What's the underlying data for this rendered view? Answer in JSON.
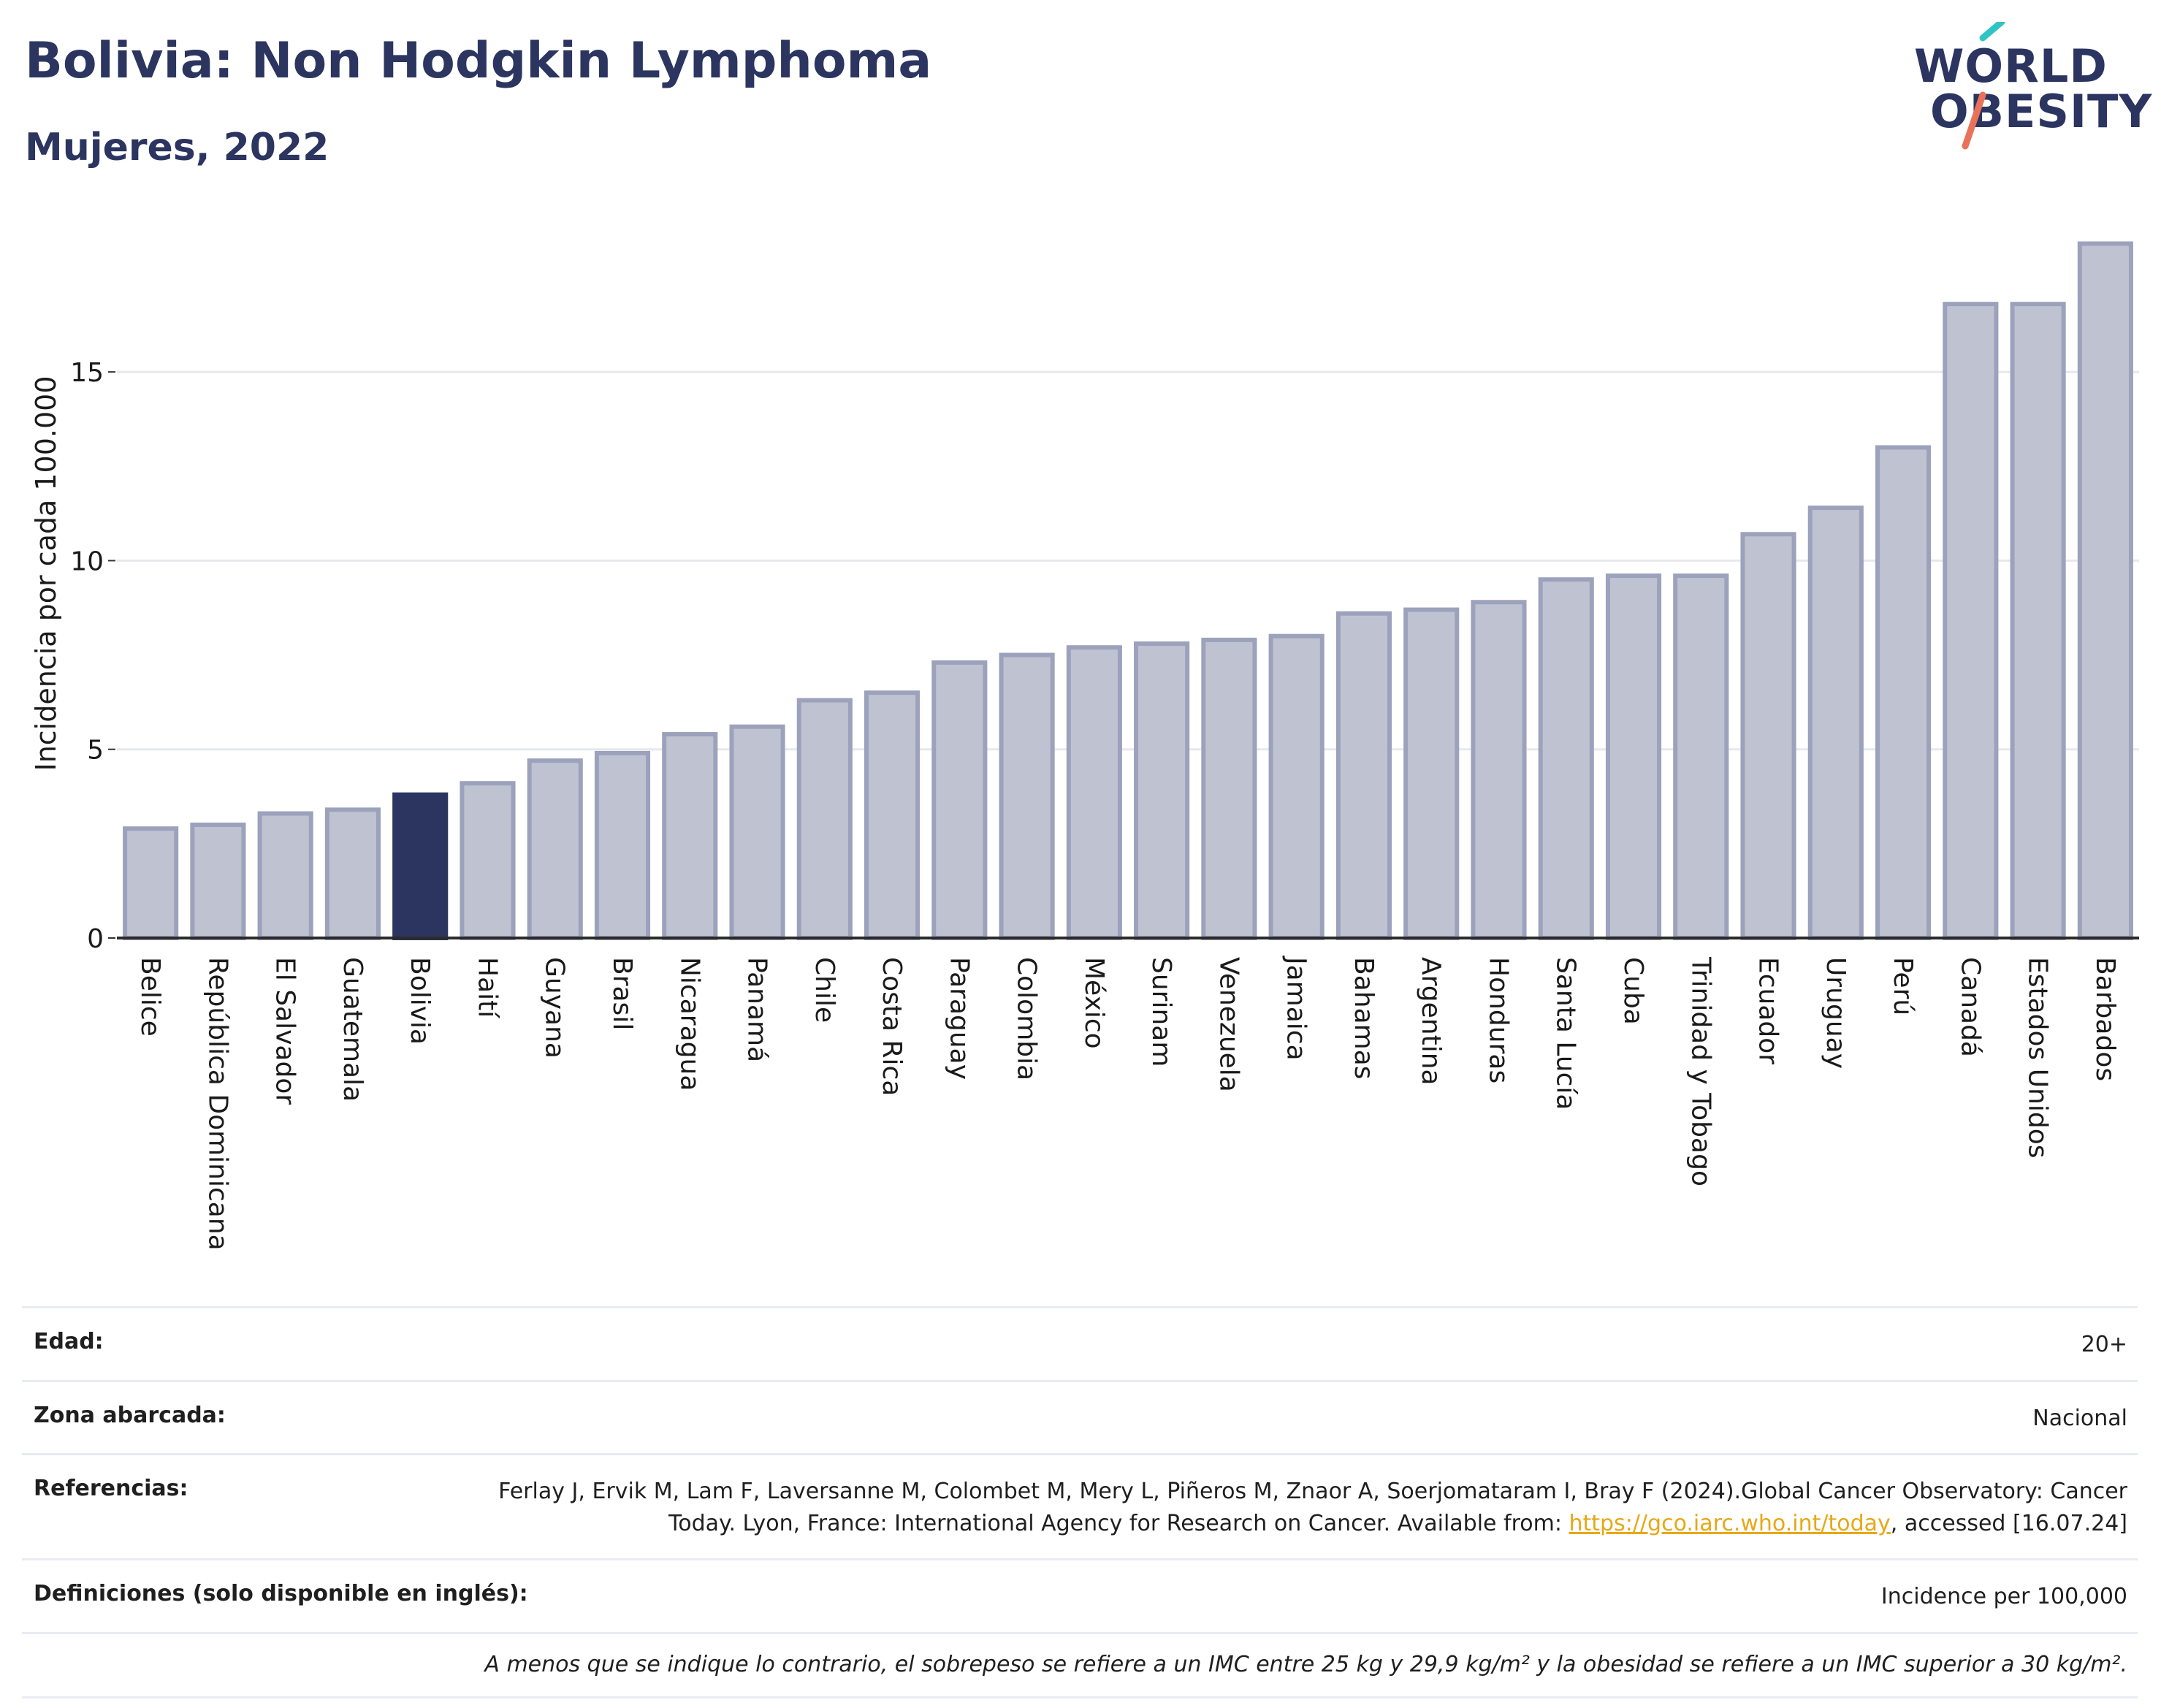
{
  "header": {
    "title": "Bolivia: Non Hodgkin Lymphoma",
    "subtitle": "Mujeres, 2022"
  },
  "logo": {
    "line1": "WORLD",
    "line2": "OBESITY",
    "colors": {
      "navy": "#2b3560",
      "teal": "#2ec4c4",
      "coral": "#e8735a"
    }
  },
  "chart_data": {
    "type": "bar",
    "ylabel": "Incidencia por cada 100.000",
    "xlabel": "",
    "ylim": [
      0,
      18.7
    ],
    "yticks": [
      0,
      5,
      10,
      15
    ],
    "grid": true,
    "highlight": "Bolivia",
    "colors": {
      "bar": "#bfc3d1",
      "bar_edge": "#9ca2bc",
      "highlight": "#2b3560",
      "grid": "#e6e8ee",
      "axis": "#2b2b2b"
    },
    "categories": [
      "Belice",
      "República Dominicana",
      "El Salvador",
      "Guatemala",
      "Bolivia",
      "Haití",
      "Guyana",
      "Brasil",
      "Nicaragua",
      "Panamá",
      "Chile",
      "Costa Rica",
      "Paraguay",
      "Colombia",
      "México",
      "Surinam",
      "Venezuela",
      "Jamaica",
      "Bahamas",
      "Argentina",
      "Honduras",
      "Santa Lucía",
      "Cuba",
      "Trinidad y Tobago",
      "Ecuador",
      "Uruguay",
      "Perú",
      "Canadá",
      "Estados Unidos",
      "Barbados"
    ],
    "values": [
      2.9,
      3.0,
      3.3,
      3.4,
      3.8,
      4.1,
      4.7,
      4.9,
      5.4,
      5.6,
      6.3,
      6.5,
      7.3,
      7.5,
      7.7,
      7.8,
      7.9,
      8.0,
      8.6,
      8.7,
      8.9,
      9.5,
      9.6,
      9.6,
      10.7,
      11.4,
      13.0,
      16.8,
      16.8,
      18.4
    ]
  },
  "meta": {
    "age_label": "Edad:",
    "age_value": "20+",
    "zone_label": "Zona abarcada:",
    "zone_value": "Nacional",
    "refs_label": "Referencias:",
    "refs_text_1": "Ferlay J, Ervik M, Lam F, Laversanne M, Colombet M, Mery L, Piñeros M, Znaor A, Soerjomataram I, Bray F (2024).Global Cancer Observatory: Cancer Today. Lyon, France: International Agency for Research on Cancer. Available from: ",
    "refs_link": "https://gco.iarc.who.int/today",
    "refs_text_2": ", accessed [16.07.24]",
    "defs_label": "Definiciones (solo disponible en inglés):",
    "defs_value": "Incidence per 100,000",
    "note": "A menos que se indique lo contrario, el sobrepeso se refiere a un IMC entre 25 kg y 29,9 kg/m² y la obesidad se refiere a un IMC superior a 30 kg/m²."
  }
}
